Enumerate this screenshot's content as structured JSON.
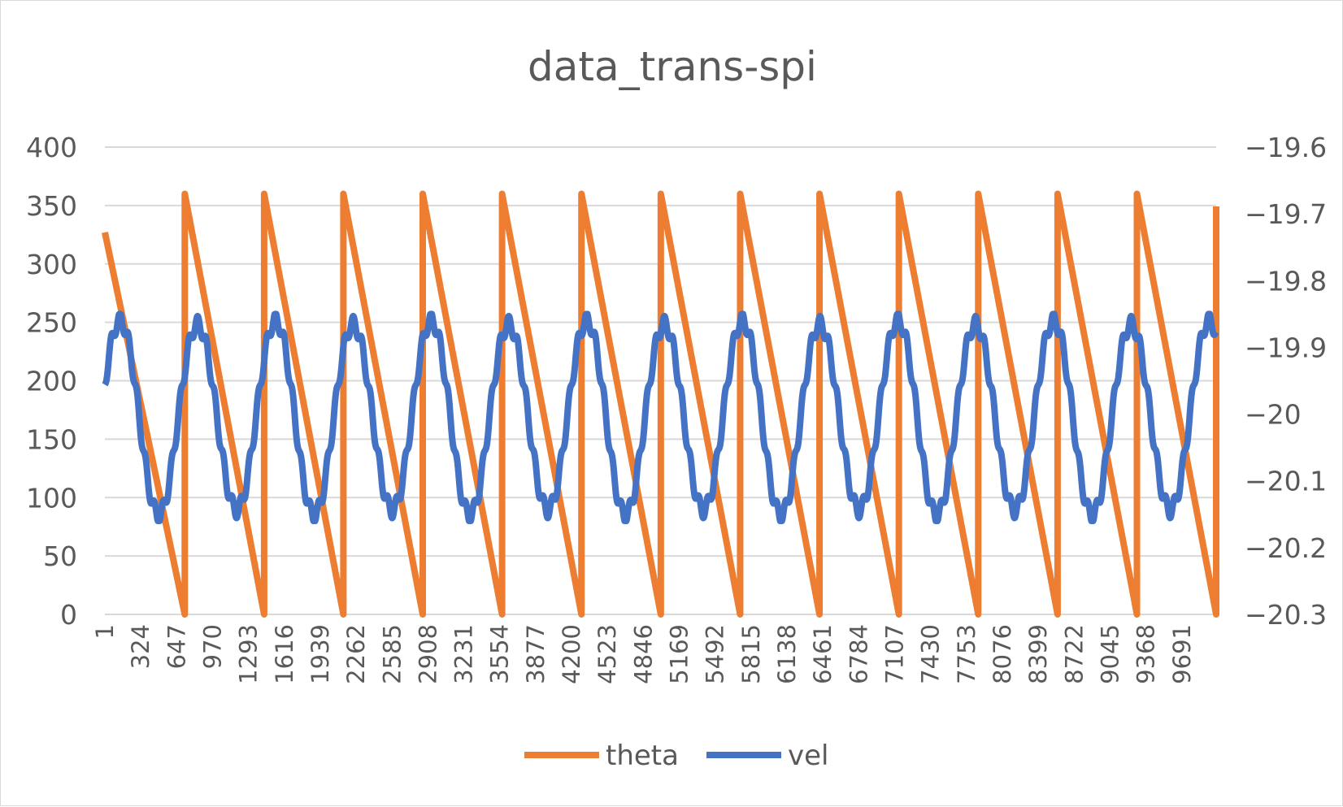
{
  "chart_data": {
    "type": "line",
    "title": "data_trans-spi",
    "x_tick_labels": [
      "1",
      "324",
      "647",
      "970",
      "1293",
      "1616",
      "1939",
      "2262",
      "2585",
      "2908",
      "3231",
      "3554",
      "3877",
      "4200",
      "4523",
      "4846",
      "5169",
      "5492",
      "5815",
      "6138",
      "6461",
      "6784",
      "7107",
      "7430",
      "7753",
      "8076",
      "8399",
      "8722",
      "9045",
      "9368",
      "9691"
    ],
    "x_range": [
      1,
      10000
    ],
    "y_left": {
      "min": 0,
      "max": 400,
      "ticks": [
        "0",
        "50",
        "100",
        "150",
        "200",
        "250",
        "300",
        "350",
        "400"
      ]
    },
    "y_right": {
      "min": -20.3,
      "max": -19.6,
      "ticks": [
        "-20.3",
        "-20.2",
        "-20.1",
        "-20",
        "-19.9",
        "-19.8",
        "-19.7",
        "-19.6"
      ]
    },
    "grid": true,
    "legend_position": "bottom",
    "series": [
      {
        "name": "theta",
        "color": "#ED7D31",
        "axis": "left",
        "pattern": "sawtooth",
        "start_value": 327,
        "peak": 360,
        "trough": 0,
        "period_points": 713,
        "reset_points": [
          720,
          1434,
          2147,
          2861,
          3575,
          4289,
          5003,
          5717,
          6431,
          7145,
          7859,
          8573,
          9287,
          10000
        ]
      },
      {
        "name": "vel",
        "color": "#4472C4",
        "axis": "right",
        "pattern": "oscillation",
        "max": -19.85,
        "min": -20.16,
        "period_points": 700,
        "start_value": -19.95,
        "end_value": -19.95
      }
    ]
  }
}
